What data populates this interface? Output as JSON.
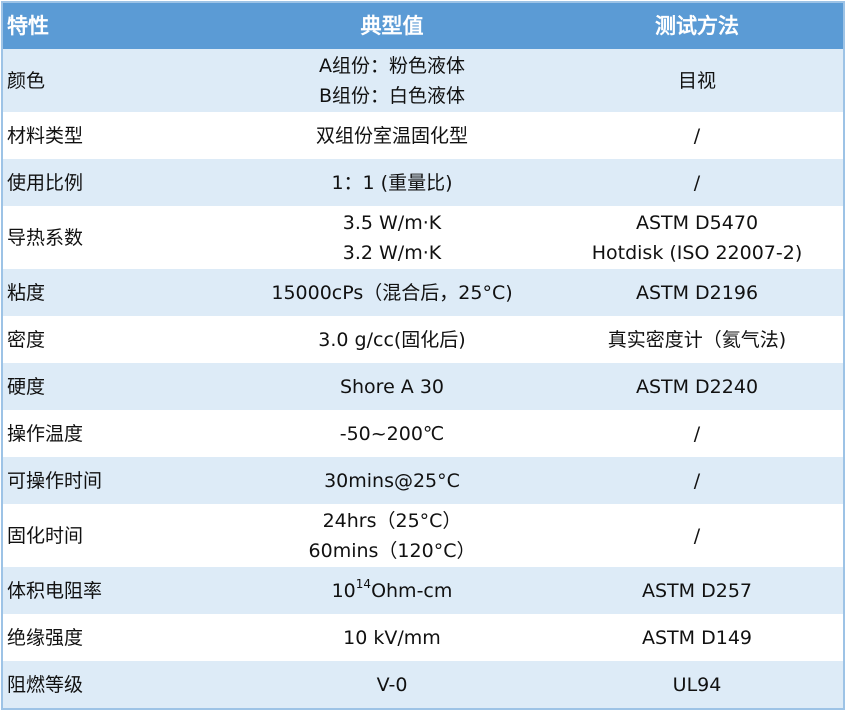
{
  "header": [
    "特性",
    "典型值",
    "测试方法"
  ],
  "rows": [
    {
      "property": "颜色",
      "value": [
        "A组份：粉色液体",
        "B组份：白色液体"
      ],
      "method": [
        "目视"
      ]
    },
    {
      "property": "材料类型",
      "value": [
        "双组份室温固化型"
      ],
      "method": [
        "/"
      ]
    },
    {
      "property": "使用比例",
      "value": [
        "1：1 (重量比)"
      ],
      "method": [
        "/"
      ]
    },
    {
      "property": "导热系数",
      "value": [
        "3.5 W/m·K",
        "3.2 W/m·K"
      ],
      "method": [
        "ASTM D5470",
        "Hotdisk (ISO 22007-2)"
      ]
    },
    {
      "property": "粘度",
      "value": [
        "15000cPs（混合后，25°C)"
      ],
      "method": [
        "ASTM D2196"
      ]
    },
    {
      "property": "密度",
      "value": [
        "3.0 g/cc(固化后)"
      ],
      "method": [
        "真实密度计（氦气法)"
      ]
    },
    {
      "property": "硬度",
      "value": [
        "Shore A 30"
      ],
      "method": [
        "ASTM D2240"
      ]
    },
    {
      "property": "操作温度",
      "value": [
        "-50~200℃"
      ],
      "method": [
        "/"
      ]
    },
    {
      "property": "可操作时间",
      "value": [
        "30mins@25°C"
      ],
      "method": [
        "/"
      ]
    },
    {
      "property": "固化时间",
      "value": [
        "24hrs（25°C）",
        "60mins（120°C）"
      ],
      "method": [
        "/"
      ]
    },
    {
      "property": "体积电阻率",
      "value_parts": {
        "base": "10",
        "exp": "14",
        "unit": "Ohm-cm"
      },
      "method": [
        "ASTM D257"
      ]
    },
    {
      "property": "绝缘强度",
      "value": [
        "10 kV/mm"
      ],
      "method": [
        "ASTM D149"
      ]
    },
    {
      "property": "阻燃等级",
      "value": [
        "V-0"
      ],
      "method": [
        "UL94"
      ]
    }
  ]
}
